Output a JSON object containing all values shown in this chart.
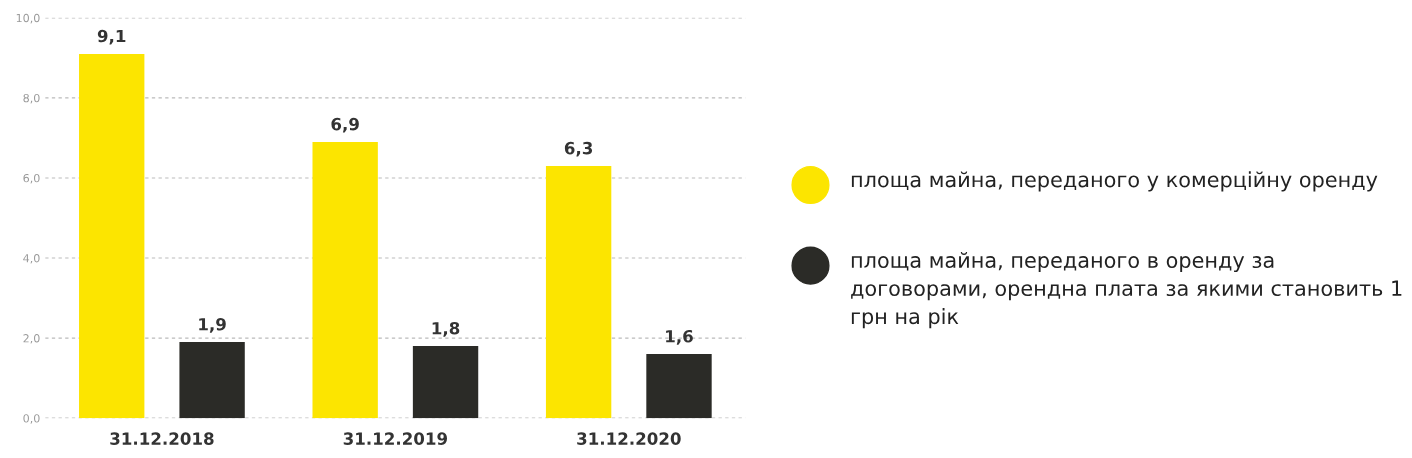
{
  "chart_data": {
    "type": "bar",
    "categories": [
      "31.12.2018",
      "31.12.2019",
      "31.12.2020"
    ],
    "series": [
      {
        "name": "площа майна, переданого у комерційну оренду",
        "color": "#fce500",
        "values": [
          9.1,
          6.9,
          6.3
        ],
        "value_labels": [
          "9,1",
          "6,9",
          "6,3"
        ]
      },
      {
        "name": "площа майна, переданого в оренду за договорами, орендна плата за якими становить 1 грн на рік",
        "color": "#2b2b27",
        "values": [
          1.9,
          1.8,
          1.6
        ],
        "value_labels": [
          "1,9",
          "1,8",
          "1,6"
        ]
      }
    ],
    "ylim": [
      0,
      10
    ],
    "yticks": [
      {
        "value": 0,
        "label": "0,0"
      },
      {
        "value": 2,
        "label": "2,0"
      },
      {
        "value": 4,
        "label": "4,0"
      },
      {
        "value": 6,
        "label": "6,0"
      },
      {
        "value": 8,
        "label": "8,0"
      },
      {
        "value": 10,
        "label": "10,0"
      }
    ],
    "grid": "y",
    "legend": "right",
    "marker": "circle"
  }
}
